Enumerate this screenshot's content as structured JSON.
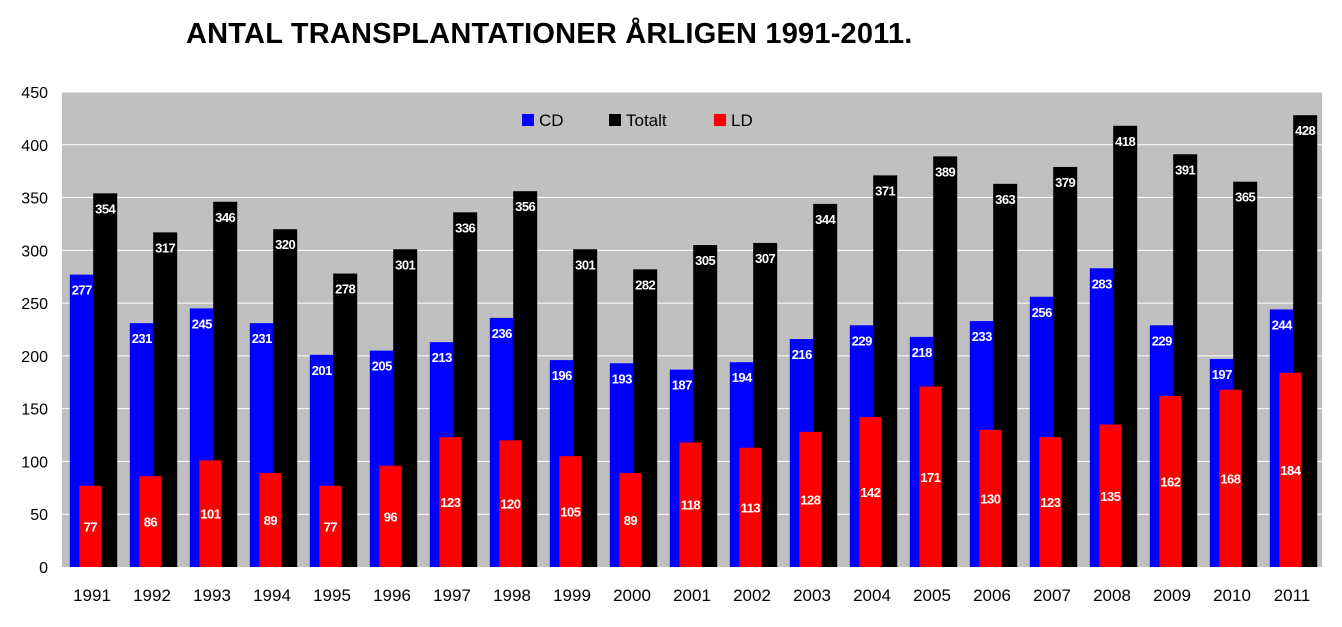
{
  "chart_data": {
    "type": "bar",
    "title": "ANTAL TRANSPLANTATIONER ÅRLIGEN 1991-2011.",
    "categories": [
      "1991",
      "1992",
      "1993",
      "1994",
      "1995",
      "1996",
      "1997",
      "1998",
      "1999",
      "2000",
      "2001",
      "2002",
      "2003",
      "2004",
      "2005",
      "2006",
      "2007",
      "2008",
      "2009",
      "2010",
      "2011"
    ],
    "series": [
      {
        "name": "CD",
        "color": "#0000ff",
        "values": [
          277,
          231,
          245,
          231,
          201,
          205,
          213,
          236,
          196,
          193,
          187,
          194,
          216,
          229,
          218,
          233,
          256,
          283,
          229,
          197,
          244
        ]
      },
      {
        "name": "Totalt",
        "color": "#000000",
        "values": [
          354,
          317,
          346,
          320,
          278,
          301,
          336,
          356,
          301,
          282,
          305,
          307,
          344,
          371,
          389,
          363,
          379,
          418,
          391,
          365,
          428
        ]
      },
      {
        "name": "LD",
        "color": "#ff0000",
        "values": [
          77,
          86,
          101,
          89,
          77,
          96,
          123,
          120,
          105,
          89,
          118,
          113,
          128,
          142,
          171,
          130,
          123,
          135,
          162,
          168,
          184
        ]
      }
    ],
    "ylim": [
      0,
      450
    ],
    "yticks": [
      0,
      50,
      100,
      150,
      200,
      250,
      300,
      350,
      400,
      450
    ],
    "grid": true,
    "legend_position": "top-center",
    "plot_background": "#c0c0c0"
  }
}
